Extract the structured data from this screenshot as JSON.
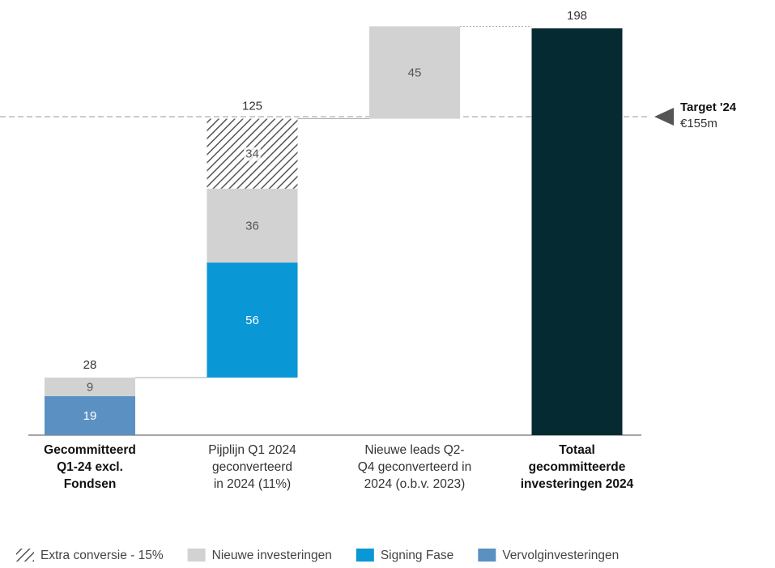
{
  "chart_data": {
    "type": "waterfall",
    "categories": [
      [
        "Gecommitteerd",
        "Q1-24 excl.",
        "Fondsen"
      ],
      [
        "Pijplijn Q1 2024",
        "geconverteerd",
        "in 2024 (11%)"
      ],
      [
        "Nieuwe leads Q2-",
        "Q4 geconverteerd in",
        "2024 (o.b.v. 2023)"
      ],
      [
        "Totaal",
        "gecommitteerde",
        "investeringen 2024"
      ]
    ],
    "series": [
      {
        "name": "Extra conversie - 15%",
        "color": "#555555",
        "pattern": "hatch",
        "values": [
          null,
          34,
          null,
          null
        ]
      },
      {
        "name": "Nieuwe investeringen",
        "color": "#d2d2d2",
        "values": [
          9,
          36,
          45,
          null
        ]
      },
      {
        "name": "Signing Fase",
        "color": "#0a97d6",
        "values": [
          null,
          56,
          null,
          null
        ]
      },
      {
        "name": "Vervolginvesteringen",
        "color": "#5b90c2",
        "values": [
          19,
          null,
          null,
          null
        ]
      }
    ],
    "totals": [
      28,
      125,
      null,
      198
    ],
    "total_color": "#062a31",
    "target": {
      "value": 155,
      "label": "Target '24",
      "value_label": "€155m"
    }
  }
}
